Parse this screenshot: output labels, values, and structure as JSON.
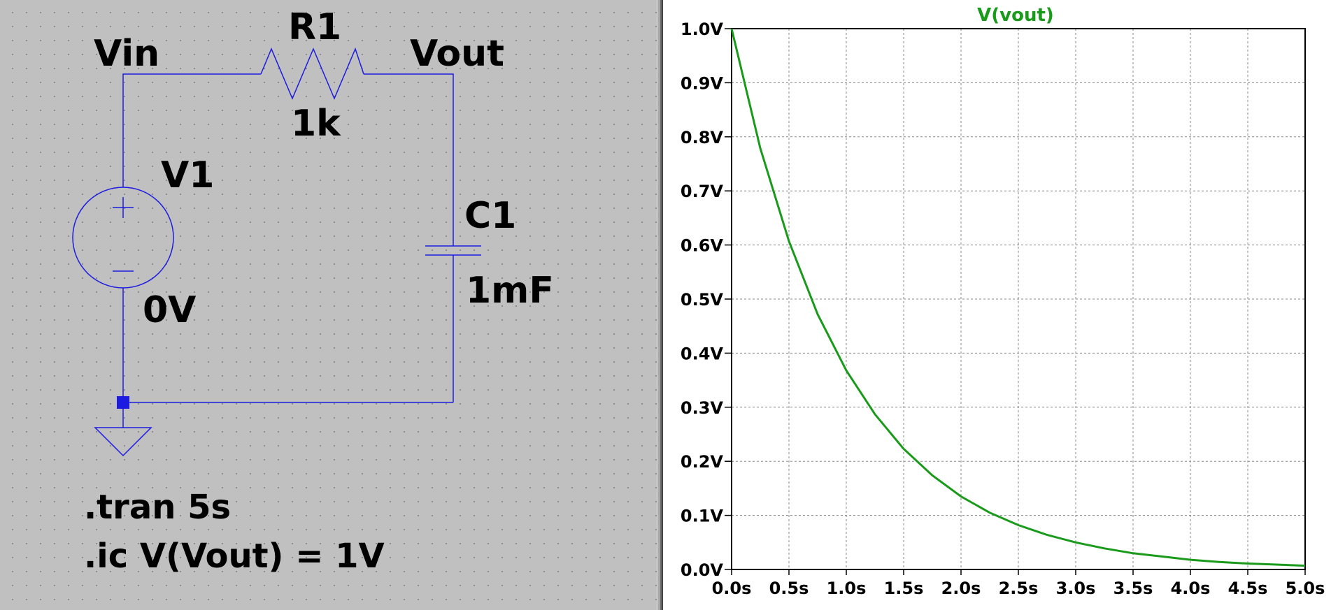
{
  "schematic": {
    "net_vin": "Vin",
    "net_vout": "Vout",
    "r1_name": "R1",
    "r1_value": "1k",
    "v1_name": "V1",
    "v1_value": "0V",
    "c1_name": "C1",
    "c1_value": "1mF",
    "directive_tran": ".tran 5s",
    "directive_ic": ".ic V(Vout) = 1V",
    "colors": {
      "wire": "#1c1ce0",
      "background": "#c0c0c0"
    }
  },
  "plot": {
    "trace_label": "V(vout)",
    "trace_color": "#1a9a1a"
  },
  "chart_data": {
    "type": "line",
    "title": "V(vout)",
    "xlabel": "",
    "ylabel": "",
    "xlim": [
      0,
      5
    ],
    "ylim": [
      0,
      1
    ],
    "grid": true,
    "x_ticks": [
      "0.0s",
      "0.5s",
      "1.0s",
      "1.5s",
      "2.0s",
      "2.5s",
      "3.0s",
      "3.5s",
      "4.0s",
      "4.5s",
      "5.0s"
    ],
    "y_ticks": [
      "0.0V",
      "0.1V",
      "0.2V",
      "0.3V",
      "0.4V",
      "0.5V",
      "0.6V",
      "0.7V",
      "0.8V",
      "0.9V",
      "1.0V"
    ],
    "series": [
      {
        "name": "V(vout)",
        "color": "#1a9a1a",
        "x": [
          0,
          0.25,
          0.5,
          0.75,
          1.0,
          1.25,
          1.5,
          1.75,
          2.0,
          2.25,
          2.5,
          2.75,
          3.0,
          3.25,
          3.5,
          3.75,
          4.0,
          4.25,
          4.5,
          4.75,
          5.0
        ],
        "values": [
          1.0,
          0.779,
          0.607,
          0.472,
          0.368,
          0.287,
          0.223,
          0.174,
          0.135,
          0.105,
          0.082,
          0.064,
          0.05,
          0.039,
          0.03,
          0.024,
          0.018,
          0.014,
          0.011,
          0.009,
          0.007
        ]
      }
    ]
  }
}
